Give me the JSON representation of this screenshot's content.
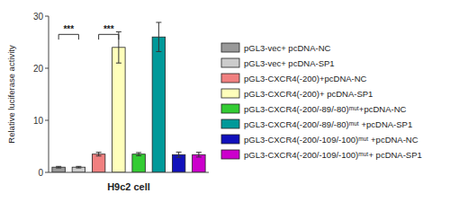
{
  "chart_data": {
    "type": "bar",
    "xlabel": "H9c2 cell",
    "ylabel": "Relative luciferase activity",
    "categories": [
      "pGL3-vec+ pcDNA-NC",
      "pGL3-vec+ pcDNA-SP1",
      "pGL3-CXCR4(-200)+pcDNA-NC",
      "pGL3-CXCR4(-200)+ pcDNA-SP1",
      "pGL3-CXCR4(-200/-89/-80)ᵐᵘᵗ+pcDNA-NC",
      "pGL3-CXCR4(-200/-89/-80)ᵐᵘᵗ +pcDNA-SP1",
      "pGL3-CXCR4(-200/-109/-100)ᵐᵘᵗ +pcDNA-NC",
      "pGL3-CXCR4(-200/-109/-100)ᵐᵘᵗ+ pcDNA-SP1"
    ],
    "values": [
      1.0,
      1.0,
      3.5,
      24.0,
      3.5,
      26.0,
      3.4,
      3.4
    ],
    "errors": [
      0.15,
      0.15,
      0.35,
      3.0,
      0.3,
      2.8,
      0.5,
      0.45
    ],
    "colors": [
      "#999999",
      "#cccccc",
      "#f08080",
      "#ffffbb",
      "#33cc33",
      "#009999",
      "#1111bb",
      "#cc00cc"
    ],
    "ylim": [
      0,
      30
    ],
    "yticks": [
      0,
      10,
      20,
      30
    ],
    "grid": false,
    "legend": "right",
    "tick_labels": "y",
    "annotations": [
      {
        "text": "***",
        "from": "pGL3-vec+ pcDNA-NC",
        "to": "pGL3-vec+ pcDNA-SP1",
        "y": 26.5
      },
      {
        "text": "***",
        "from": "pGL3-CXCR4(-200)+pcDNA-NC",
        "to": "pGL3-CXCR4(-200)+ pcDNA-SP1",
        "y": 26.5
      }
    ]
  }
}
